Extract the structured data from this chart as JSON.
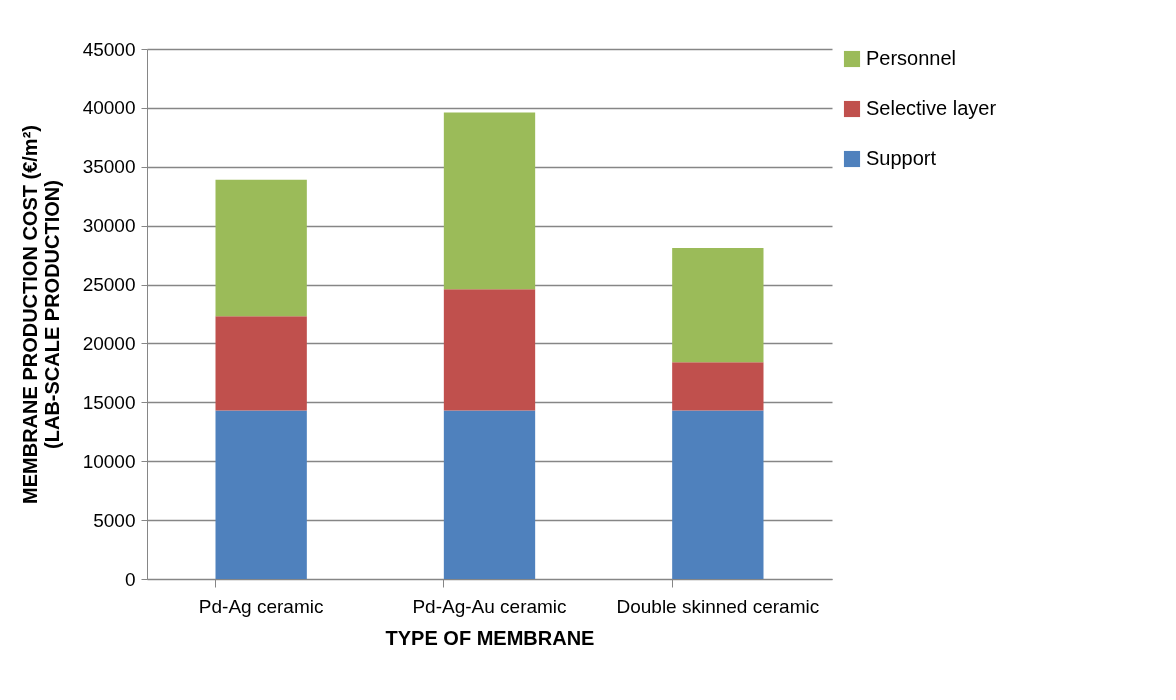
{
  "chart_data": {
    "type": "bar",
    "stacked": true,
    "xlabel": "TYPE OF MEMBRANE",
    "ylabel": "MEMBRANE PRODUCTION COST (€/m²)\n(LAB-SCALE PRODUCTION)",
    "categories": [
      "Pd-Ag ceramic",
      "Pd-Ag-Au ceramic",
      "Double skinned ceramic"
    ],
    "series": [
      {
        "name": "Support",
        "color": "#4f81bd",
        "values": [
          14300,
          14300,
          14300
        ]
      },
      {
        "name": "Selective layer",
        "color": "#c0504d",
        "values": [
          8000,
          10300,
          4100
        ]
      },
      {
        "name": "Personnel",
        "color": "#9bbb59",
        "values": [
          11600,
          15000,
          9700
        ]
      }
    ],
    "ylim": [
      0,
      45000
    ],
    "yticks": [
      0,
      5000,
      10000,
      15000,
      20000,
      25000,
      30000,
      35000,
      40000,
      45000
    ],
    "grid": "y",
    "legend": "right"
  }
}
